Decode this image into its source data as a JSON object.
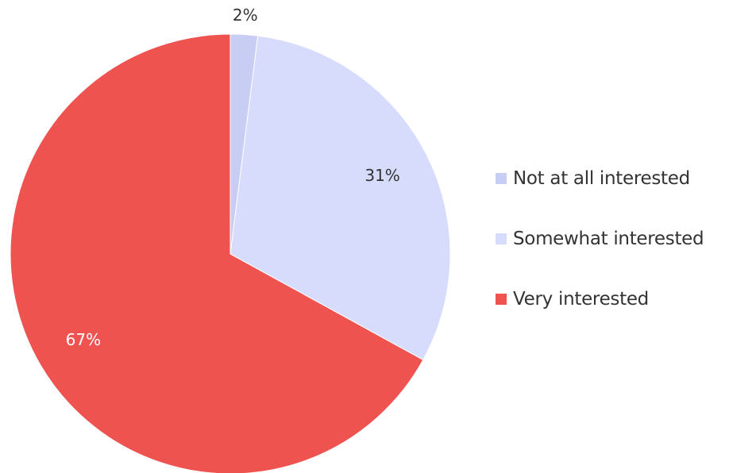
{
  "chart_data": {
    "type": "pie",
    "title": "",
    "legend_position": "right",
    "slices": [
      {
        "label": "Not at all interested",
        "value": 2,
        "display": "2%",
        "color": "#c8cdf3"
      },
      {
        "label": "Somewhat interested",
        "value": 31,
        "display": "31%",
        "color": "#d7dcfc"
      },
      {
        "label": "Very interested",
        "value": 67,
        "display": "67%",
        "color": "#ef5350"
      }
    ],
    "label_colors": {
      "outside": "#333333",
      "inside_light": "#333333",
      "inside_dark": "#ffffff"
    }
  }
}
